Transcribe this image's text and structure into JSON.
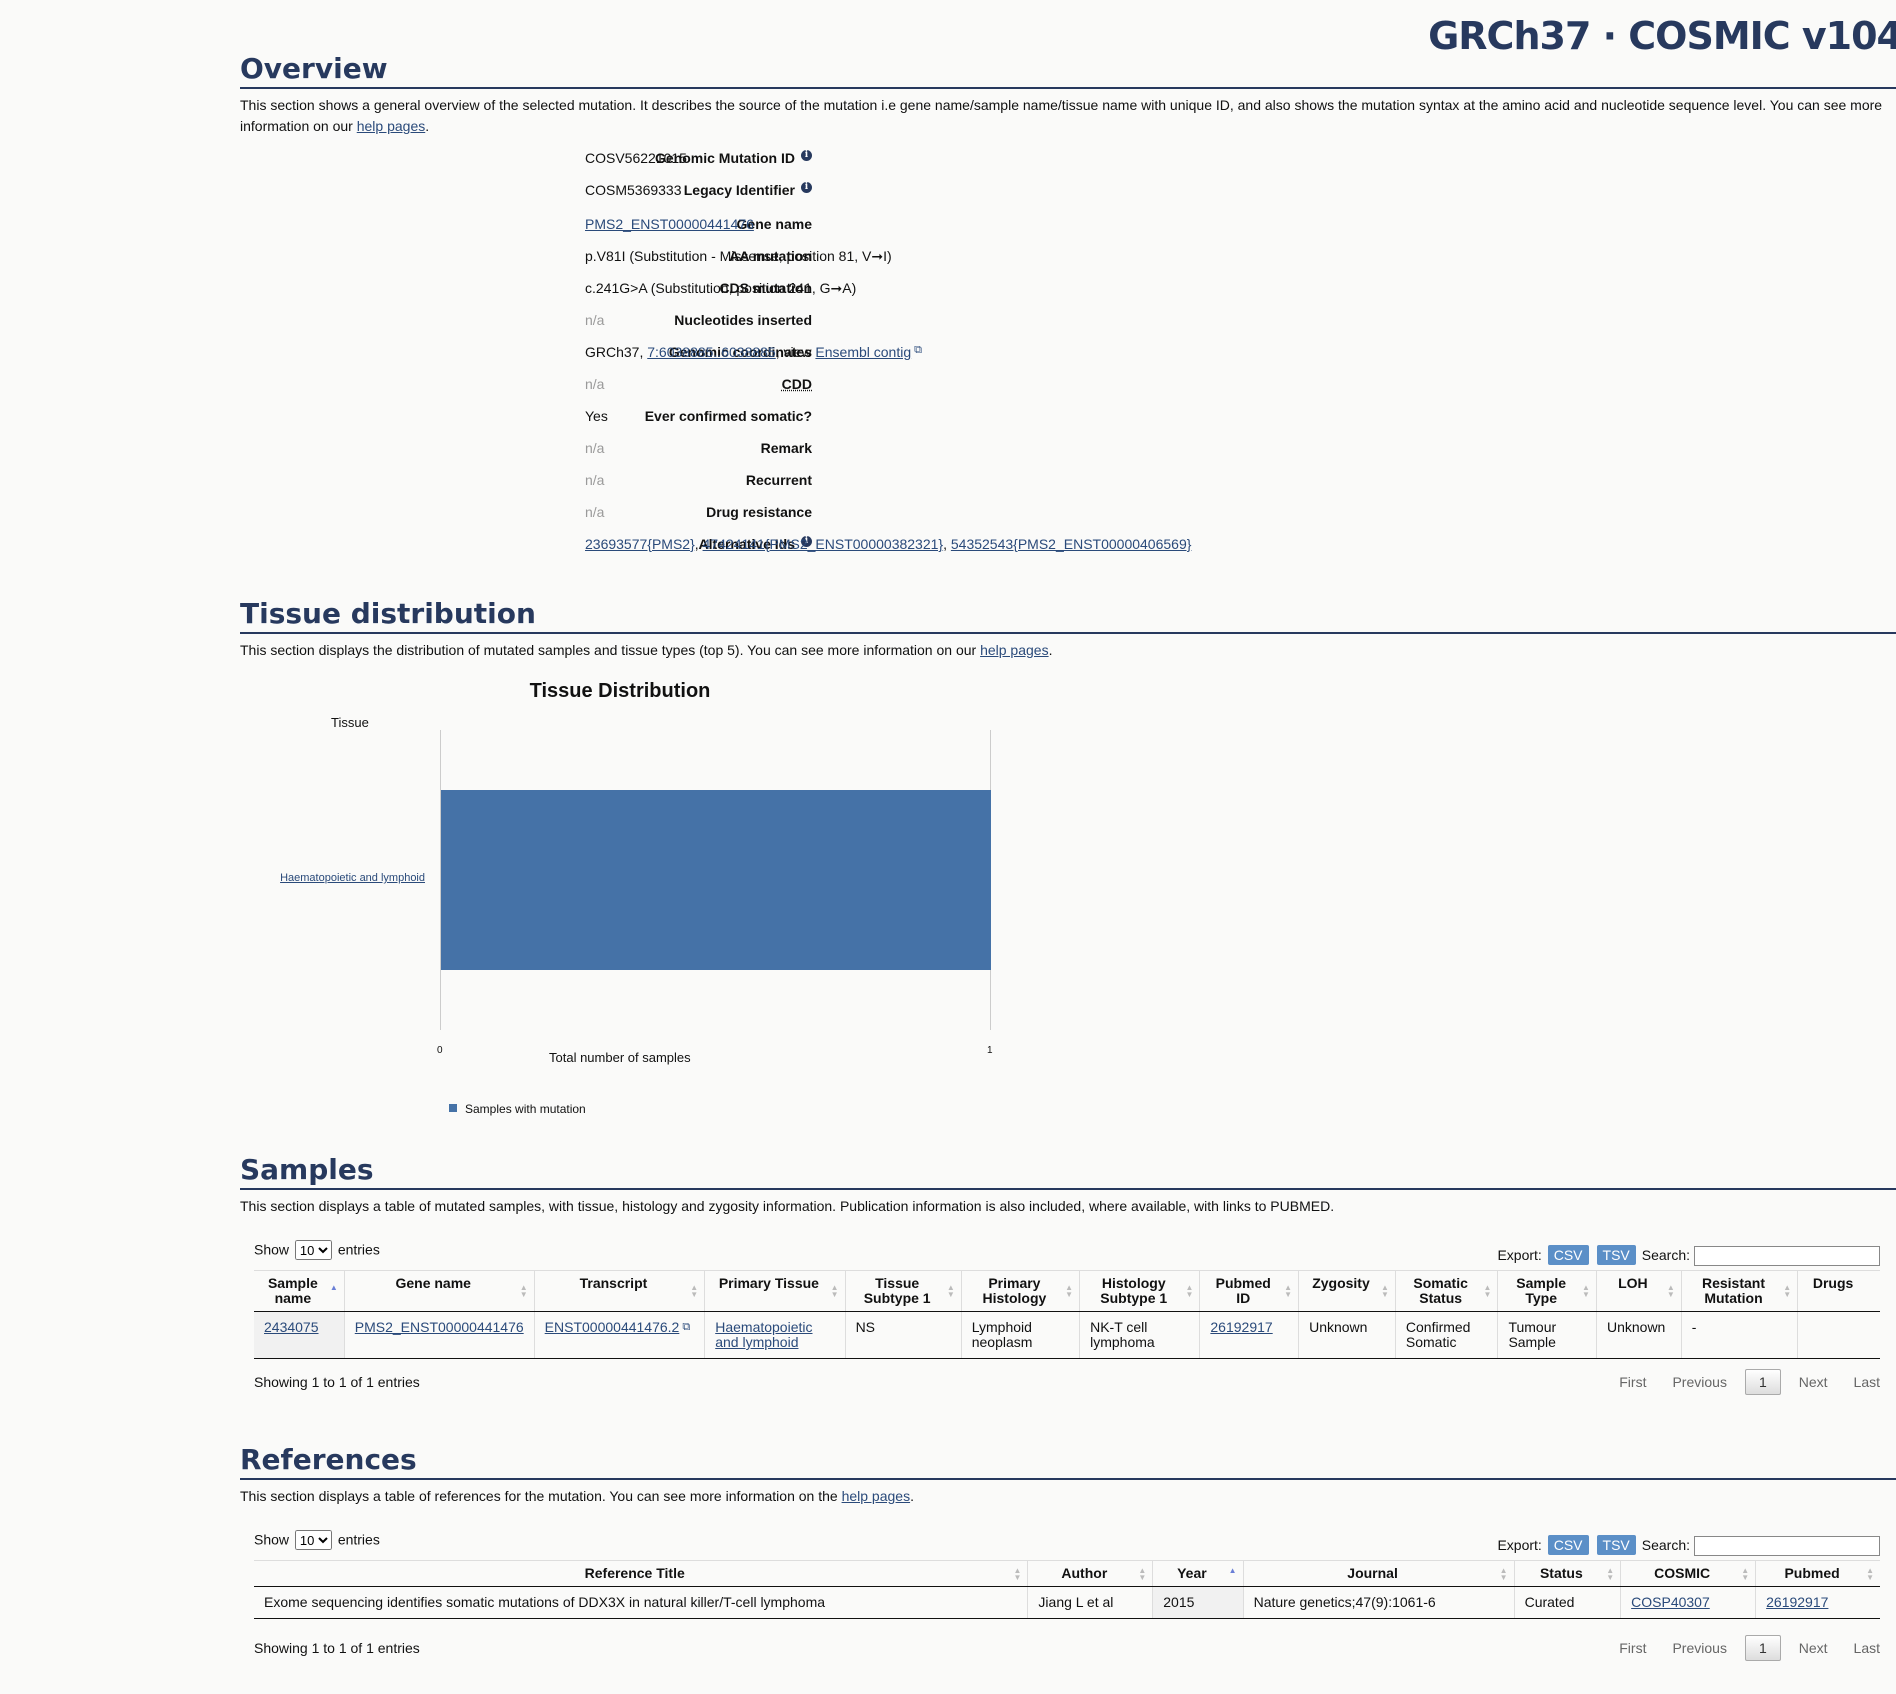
{
  "brand": "GRCh37 · COSMIC v104",
  "overview": {
    "heading": "Overview",
    "desc": "This section shows a general overview of the selected mutation. It describes the source of the mutation i.e gene name/sample name/tissue name with unique ID, and also shows the mutation syntax at the amino acid and nucleotide sequence level. You can see more information on our ",
    "help_link": "help pages",
    "period": ".",
    "fields": {
      "genomic_mutation_id": {
        "label": "Genomic Mutation ID",
        "value": "COSV56221015"
      },
      "legacy_identifier": {
        "label": "Legacy Identifier",
        "value": "COSM5369333"
      },
      "gene_name": {
        "label": "Gene name",
        "value": "PMS2_ENST00000441476"
      },
      "aa_mutation": {
        "label": "AA mutation",
        "value": "p.V81I (Substitution - Missense, position 81, V➞I)"
      },
      "cds_mutation": {
        "label": "CDS mutation",
        "value": "c.241G>A (Substitution, position 241, G➞A)"
      },
      "nucleotides_inserted": {
        "label": "Nucleotides inserted",
        "value": "n/a"
      },
      "genomic_coordinates": {
        "label": "Genomic coordinates",
        "prefix": "GRCh37, ",
        "coord_link": "7:6038885..6038885",
        "mid": ", view ",
        "ensembl_link": "Ensembl contig"
      },
      "cdd": {
        "label": "CDD",
        "value": "n/a"
      },
      "ever_confirmed": {
        "label": "Ever confirmed somatic?",
        "value": "Yes"
      },
      "remark": {
        "label": "Remark",
        "value": "n/a"
      },
      "recurrent": {
        "label": "Recurrent",
        "value": "n/a"
      },
      "drug_resistance": {
        "label": "Drug resistance",
        "value": "n/a"
      },
      "alternative_ids": {
        "label": "Alternative Ids",
        "links": [
          "23693577{PMS2}",
          "47424141{PMS2_ENST00000382321}",
          "54352543{PMS2_ENST00000406569}"
        ],
        "sep": ", "
      }
    }
  },
  "tissue": {
    "heading": "Tissue distribution",
    "desc": "This section displays the distribution of mutated samples and tissue types (top 5). You can see more information on our ",
    "help_link": "help pages",
    "period": "."
  },
  "chart_data": {
    "type": "bar",
    "orientation": "horizontal",
    "title": "Tissue Distribution",
    "ylabel": "Tissue",
    "xlabel": "Total number of samples",
    "categories": [
      "Haematopoietic and lymphoid"
    ],
    "series": [
      {
        "name": "Samples with mutation",
        "values": [
          1
        ],
        "color": "#4572a7"
      }
    ],
    "xlim": [
      0,
      1
    ],
    "ticks": [
      "0",
      "1"
    ],
    "legend": "bottom-left"
  },
  "samples": {
    "heading": "Samples",
    "desc": "This section displays a table of mutated samples, with tissue, histology and zygosity information. Publication information is also included, where available, with links to PUBMED.",
    "show_label": "Show",
    "entries_label": "entries",
    "page_size": "10",
    "export_label": "Export:",
    "csv": "CSV",
    "tsv": "TSV",
    "search_label": "Search:",
    "columns": [
      "Sample name",
      "Gene name",
      "Transcript",
      "Primary Tissue",
      "Tissue Subtype 1",
      "Primary Histology",
      "Histology Subtype 1",
      "Pubmed ID",
      "Zygosity",
      "Somatic Status",
      "Sample Type",
      "LOH",
      "Resistant Mutation",
      "Drugs"
    ],
    "rows": [
      [
        "2434075",
        "PMS2_ENST00000441476",
        "ENST00000441476.2",
        "Haematopoietic and lymphoid",
        "NS",
        "Lymphoid neoplasm",
        "NK-T cell lymphoma",
        "26192917",
        "Unknown",
        "Confirmed Somatic",
        "Tumour Sample",
        "Unknown",
        "-",
        ""
      ]
    ],
    "info": "Showing 1 to 1 of 1 entries",
    "pager": {
      "first": "First",
      "previous": "Previous",
      "current": "1",
      "next": "Next",
      "last": "Last"
    }
  },
  "references": {
    "heading": "References",
    "desc": "This section displays a table of references for the mutation. You can see more information on the ",
    "help_link": "help pages",
    "period": ".",
    "show_label": "Show",
    "entries_label": "entries",
    "page_size": "10",
    "export_label": "Export:",
    "csv": "CSV",
    "tsv": "TSV",
    "search_label": "Search:",
    "columns": [
      "Reference Title",
      "Author",
      "Year",
      "Journal",
      "Status",
      "COSMIC",
      "Pubmed"
    ],
    "rows": [
      [
        "Exome sequencing identifies somatic mutations of DDX3X in natural killer/T-cell lymphoma",
        "Jiang L et al",
        "2015",
        "Nature genetics;47(9):1061-6",
        "Curated",
        "COSP40307",
        "26192917"
      ]
    ],
    "info": "Showing 1 to 1 of 1 entries",
    "pager": {
      "first": "First",
      "previous": "Previous",
      "current": "1",
      "next": "Next",
      "last": "Last"
    }
  }
}
